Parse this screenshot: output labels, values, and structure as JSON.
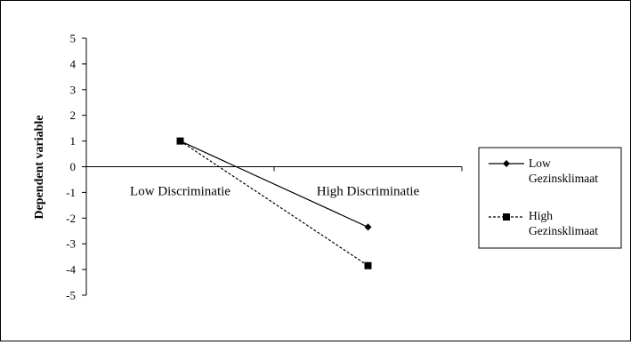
{
  "chart_data": {
    "type": "line",
    "categories": [
      "Low Discriminatie",
      "High Discriminatie"
    ],
    "series": [
      {
        "name": "Low Gezinsklimaat",
        "values": [
          1.0,
          -2.35
        ],
        "marker": "diamond",
        "line_style": "solid"
      },
      {
        "name": "High Gezinsklimaat",
        "values": [
          1.0,
          -3.85
        ],
        "marker": "square",
        "line_style": "dashed"
      }
    ],
    "xlabel": "",
    "ylabel": "Dependent variable",
    "ylim": [
      -5,
      5
    ],
    "yticks": [
      5,
      4,
      3,
      2,
      1,
      0,
      -1,
      -2,
      -3,
      -4,
      -5
    ],
    "grid": false,
    "legend_position": "right",
    "category_labels_position": "below zero line"
  },
  "legend": {
    "items": [
      {
        "line1": "Low",
        "line2": "Gezinsklimaat"
      },
      {
        "line1": "High",
        "line2": "Gezinsklimaat"
      }
    ]
  },
  "colors": {
    "line": "#000000",
    "background": "#ffffff"
  }
}
